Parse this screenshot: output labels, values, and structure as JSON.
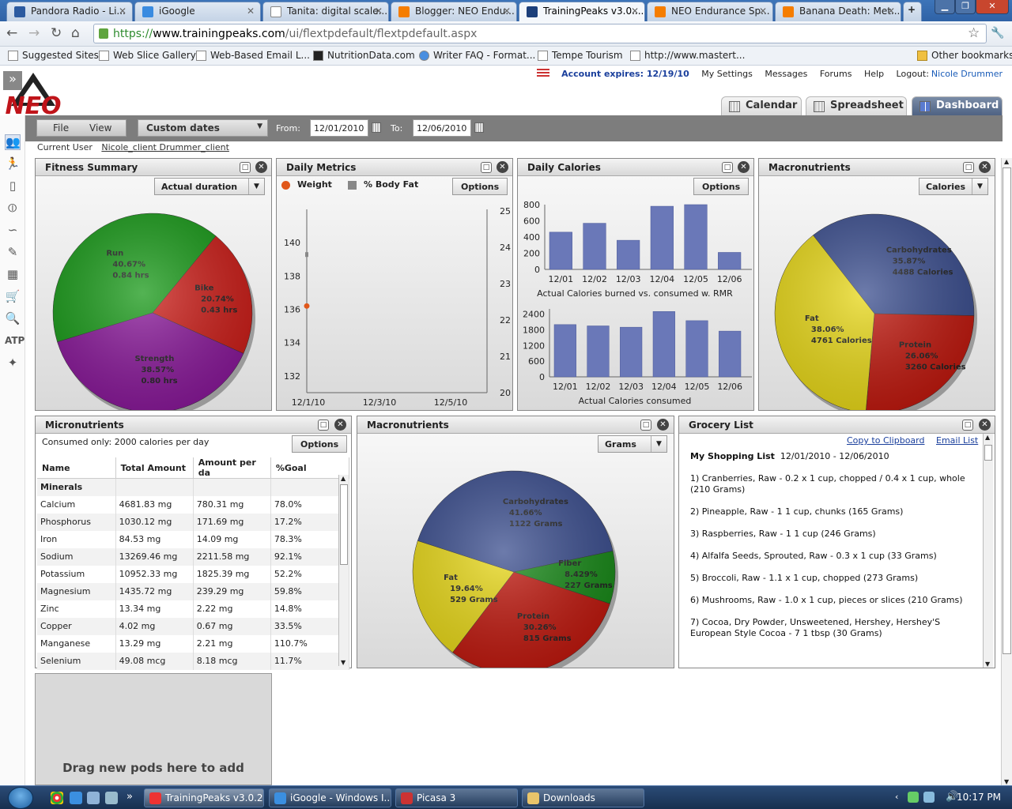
{
  "browser": {
    "tabs": [
      {
        "title": "Pandora Radio - Li...",
        "color": "#2b5aa0"
      },
      {
        "title": "iGoogle",
        "color": "#3a8be0"
      },
      {
        "title": "Tanita: digital scale...",
        "color": "#ffffff"
      },
      {
        "title": "Blogger: NEO Endu...",
        "color": "#f57d00"
      },
      {
        "title": "TrainingPeaks v3.0....",
        "color": "#1c3f7a"
      },
      {
        "title": "NEO Endurance Sp...",
        "color": "#f57d00"
      },
      {
        "title": "Banana Death: Met...",
        "color": "#f57d00"
      }
    ],
    "new_tab_label": "+",
    "url_secure": "https://",
    "url_host": "www.trainingpeaks.com",
    "url_path": "/ui/flextpdefault/flextpdefault.aspx",
    "bookmarks": [
      "Suggested Sites",
      "Web Slice Gallery",
      "Web-Based Email L...",
      "NutritionData.com",
      "Writer FAQ - Format...",
      "Tempe Tourism",
      "http://www.mastert..."
    ],
    "other_bookmarks": "Other bookmarks"
  },
  "app": {
    "logo_text": "NEO",
    "account": {
      "expires": "Account expires: 12/19/10",
      "settings": "My Settings",
      "messages": "Messages",
      "forums": "Forums",
      "help": "Help",
      "logout_label": "Logout:",
      "user": "Nicole Drummer"
    },
    "view_tabs": [
      "Calendar",
      "Spreadsheet",
      "Dashboard"
    ],
    "menu": {
      "file": "File",
      "view": "View"
    },
    "date_range": "Custom dates",
    "from_label": "From:",
    "from_date": "12/01/2010",
    "to_label": "To:",
    "to_date": "12/06/2010",
    "current_user_label": "Current User",
    "current_user": "Nicole_client Drummer_client",
    "expand_icon": "»"
  },
  "pods": {
    "fitness": {
      "title": "Fitness Summary",
      "dropdown": "Actual duration",
      "chart_data": {
        "type": "pie",
        "slices": [
          {
            "label": "Run",
            "percent": 40.67,
            "value": "0.84 hrs",
            "color": "#1a9a1a"
          },
          {
            "label": "Bike",
            "percent": 20.74,
            "value": "0.43 hrs",
            "color": "#cc1f1a"
          },
          {
            "label": "Strength",
            "percent": 38.57,
            "value": "0.80 hrs",
            "color": "#8a1a9a"
          }
        ]
      }
    },
    "daily_metrics": {
      "title": "Daily Metrics",
      "options": "Options",
      "legend": [
        {
          "name": "Weight",
          "color": "#e0571a"
        },
        {
          "name": "% Body Fat",
          "color": "#888888"
        }
      ],
      "chart_data": {
        "type": "scatter",
        "x_ticks": [
          "12/1/10",
          "12/3/10",
          "12/5/10"
        ],
        "y_left_ticks": [
          140,
          138,
          136,
          134,
          132
        ],
        "y_right_ticks": [
          25,
          24,
          23,
          22,
          21,
          20
        ],
        "series": [
          {
            "name": "Weight",
            "x": [
              "12/1/10"
            ],
            "values": [
              136.2
            ]
          },
          {
            "name": "% Body Fat",
            "x": [
              "12/1/10"
            ],
            "values": [
              23.8
            ]
          }
        ]
      }
    },
    "daily_calories": {
      "title": "Daily Calories",
      "options": "Options",
      "chart_data": [
        {
          "type": "bar",
          "xlabel": "Actual Calories burned vs. consumed w. RMR",
          "categories": [
            "12/01",
            "12/02",
            "12/03",
            "12/04",
            "12/05",
            "12/06"
          ],
          "values": [
            460,
            570,
            360,
            780,
            800,
            210
          ],
          "y_ticks": [
            800,
            600,
            400,
            200,
            0
          ],
          "ylim": [
            0,
            800
          ],
          "color": "#6a78b8"
        },
        {
          "type": "bar",
          "xlabel": "Actual Calories consumed",
          "categories": [
            "12/01",
            "12/02",
            "12/03",
            "12/04",
            "12/05",
            "12/06"
          ],
          "values": [
            2000,
            1950,
            1900,
            2500,
            2150,
            1750
          ],
          "y_ticks": [
            2400,
            1800,
            1200,
            600,
            0
          ],
          "ylim": [
            0,
            2600
          ],
          "color": "#6a78b8"
        }
      ]
    },
    "macro_calories": {
      "title": "Macronutrients",
      "dropdown": "Calories",
      "chart_data": {
        "type": "pie",
        "slices": [
          {
            "label": "Carbohydrates",
            "percent": 35.87,
            "value": "4488 Calories",
            "color": "#3c4f8f"
          },
          {
            "label": "Protein",
            "percent": 26.06,
            "value": "3260 Calories",
            "color": "#c01a10"
          },
          {
            "label": "Fat",
            "percent": 38.06,
            "value": "4761 Calories",
            "color": "#e8d81a"
          }
        ]
      }
    },
    "micronutrients": {
      "title": "Micronutrients",
      "consumed": "Consumed only: 2000 calories per day",
      "options": "Options",
      "columns": [
        "Name",
        "Total Amount",
        "Amount per da",
        "%Goal"
      ],
      "group": "Minerals",
      "rows": [
        [
          "Calcium",
          "4681.83 mg",
          "780.31 mg",
          "78.0%"
        ],
        [
          "Phosphorus",
          "1030.12 mg",
          "171.69 mg",
          "17.2%"
        ],
        [
          "Iron",
          "84.53 mg",
          "14.09 mg",
          "78.3%"
        ],
        [
          "Sodium",
          "13269.46 mg",
          "2211.58 mg",
          "92.1%"
        ],
        [
          "Potassium",
          "10952.33 mg",
          "1825.39 mg",
          "52.2%"
        ],
        [
          "Magnesium",
          "1435.72 mg",
          "239.29 mg",
          "59.8%"
        ],
        [
          "Zinc",
          "13.34 mg",
          "2.22 mg",
          "14.8%"
        ],
        [
          "Copper",
          "4.02 mg",
          "0.67 mg",
          "33.5%"
        ],
        [
          "Manganese",
          "13.29 mg",
          "2.21 mg",
          "110.7%"
        ],
        [
          "Selenium",
          "49.08 mcg",
          "8.18 mcg",
          "11.7%"
        ]
      ]
    },
    "macro_grams": {
      "title": "Macronutrients",
      "dropdown": "Grams",
      "chart_data": {
        "type": "pie",
        "slices": [
          {
            "label": "Carbohydrates",
            "percent": 41.66,
            "value": "1122 Grams",
            "color": "#3c4f8f"
          },
          {
            "label": "Fiber",
            "percent": 8.429,
            "value": "227 Grams",
            "color": "#1a8a1a"
          },
          {
            "label": "Protein",
            "percent": 30.26,
            "value": "815 Grams",
            "color": "#c01a10"
          },
          {
            "label": "Fat",
            "percent": 19.64,
            "value": "529 Grams",
            "color": "#e8d81a"
          }
        ]
      }
    },
    "grocery": {
      "title": "Grocery List",
      "copy": "Copy to Clipboard",
      "email": "Email List",
      "heading": "My Shopping List",
      "range": "12/01/2010 - 12/06/2010",
      "items": [
        "1) Cranberries, Raw - 0.2 x 1 cup, chopped / 0.4 x 1 cup, whole (210 Grams)",
        "2) Pineapple, Raw - 1 1 cup, chunks (165 Grams)",
        "3) Raspberries, Raw - 1 1 cup (246 Grams)",
        "4) Alfalfa Seeds, Sprouted, Raw - 0.3 x 1 cup (33 Grams)",
        "5) Broccoli, Raw - 1.1 x 1 cup, chopped (273 Grams)",
        "6) Mushrooms, Raw - 1.0 x 1 cup, pieces or slices (210 Grams)",
        "7) Cocoa, Dry Powder, Unsweetened, Hershey, Hershey'S European Style Cocoa - 7 1 tbsp (30 Grams)"
      ]
    },
    "drag_hint": "Drag new pods here to add"
  },
  "taskbar": {
    "buttons": [
      "TrainingPeaks v3.0.2...",
      "iGoogle - Windows I...",
      "Picasa 3",
      "Downloads"
    ],
    "clock": "10:17 PM"
  }
}
